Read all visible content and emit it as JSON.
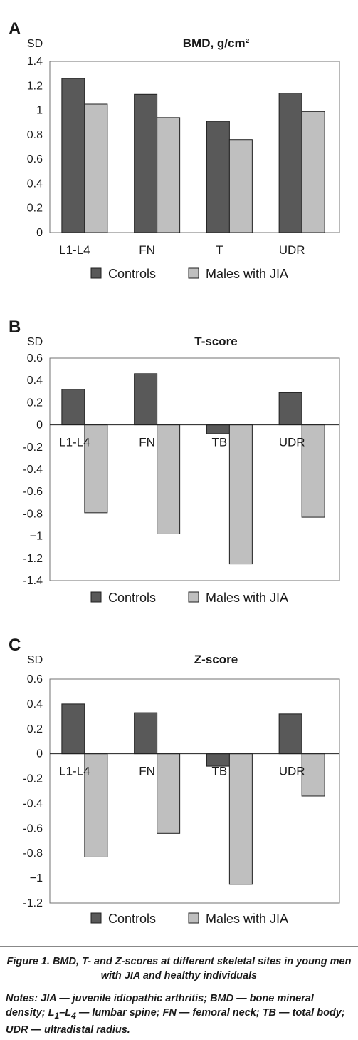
{
  "chart_data": [
    {
      "type": "bar",
      "panel_letter": "A",
      "title": "BMD, g/cm²",
      "ylabel": "SD",
      "categories": [
        "L1-L4",
        "FN",
        "T",
        "UDR"
      ],
      "series": [
        {
          "name": "Controls",
          "values": [
            1.26,
            1.13,
            0.91,
            1.14
          ]
        },
        {
          "name": "Males with JIA",
          "values": [
            1.05,
            0.94,
            0.76,
            0.99
          ]
        }
      ],
      "ylim": [
        0,
        1.4
      ],
      "yticks": [
        "1.4",
        "1.2",
        "1",
        "0.8",
        "0.6",
        "0.4",
        "0.2",
        "0"
      ],
      "legend": "bottom",
      "labels_at_zero": false
    },
    {
      "type": "bar",
      "panel_letter": "B",
      "title": "T-score",
      "ylabel": "SD",
      "categories": [
        "L1-L4",
        "FN",
        "TB",
        "UDR"
      ],
      "series": [
        {
          "name": "Controls",
          "values": [
            0.32,
            0.46,
            -0.08,
            0.29
          ]
        },
        {
          "name": "Males with JIA",
          "values": [
            -0.79,
            -0.98,
            -1.25,
            -0.83
          ]
        }
      ],
      "ylim": [
        -1.4,
        0.6
      ],
      "yticks": [
        "0.6",
        "0.4",
        "0.2",
        "0",
        "-0.2",
        "-0.4",
        "-0.6",
        "-0.8",
        "−1",
        "-1.2",
        "-1.4"
      ],
      "legend": "bottom",
      "labels_at_zero": true
    },
    {
      "type": "bar",
      "panel_letter": "C",
      "title": "Z-score",
      "ylabel": "SD",
      "categories": [
        "L1-L4",
        "FN",
        "TB",
        "UDR"
      ],
      "series": [
        {
          "name": "Controls",
          "values": [
            0.4,
            0.33,
            -0.1,
            0.32
          ]
        },
        {
          "name": "Males with JIA",
          "values": [
            -0.83,
            -0.64,
            -1.05,
            -0.34
          ]
        }
      ],
      "ylim": [
        -1.2,
        0.6
      ],
      "yticks": [
        "0.6",
        "0.4",
        "0.2",
        "0",
        "-0.2",
        "-0.4",
        "-0.6",
        "-0.8",
        "−1",
        "-1.2"
      ],
      "legend": "bottom",
      "labels_at_zero": true
    }
  ],
  "colors": {
    "controls": "#595959",
    "jia": "#bfbfbf"
  },
  "caption": "Figure 1. BMD, T- and Z-scores at different skeletal sites in young men with JIA and healthy individuals",
  "notes": {
    "part1": "Notes: JIA — juvenile idiopathic arthritis; BMD — bone mineral density; L",
    "sub1": "1",
    "part2": "–L",
    "sub2": "4",
    "part3": " — lumbar spine; FN — femoral neck; TB — total body; UDR — ultradistal radius."
  }
}
